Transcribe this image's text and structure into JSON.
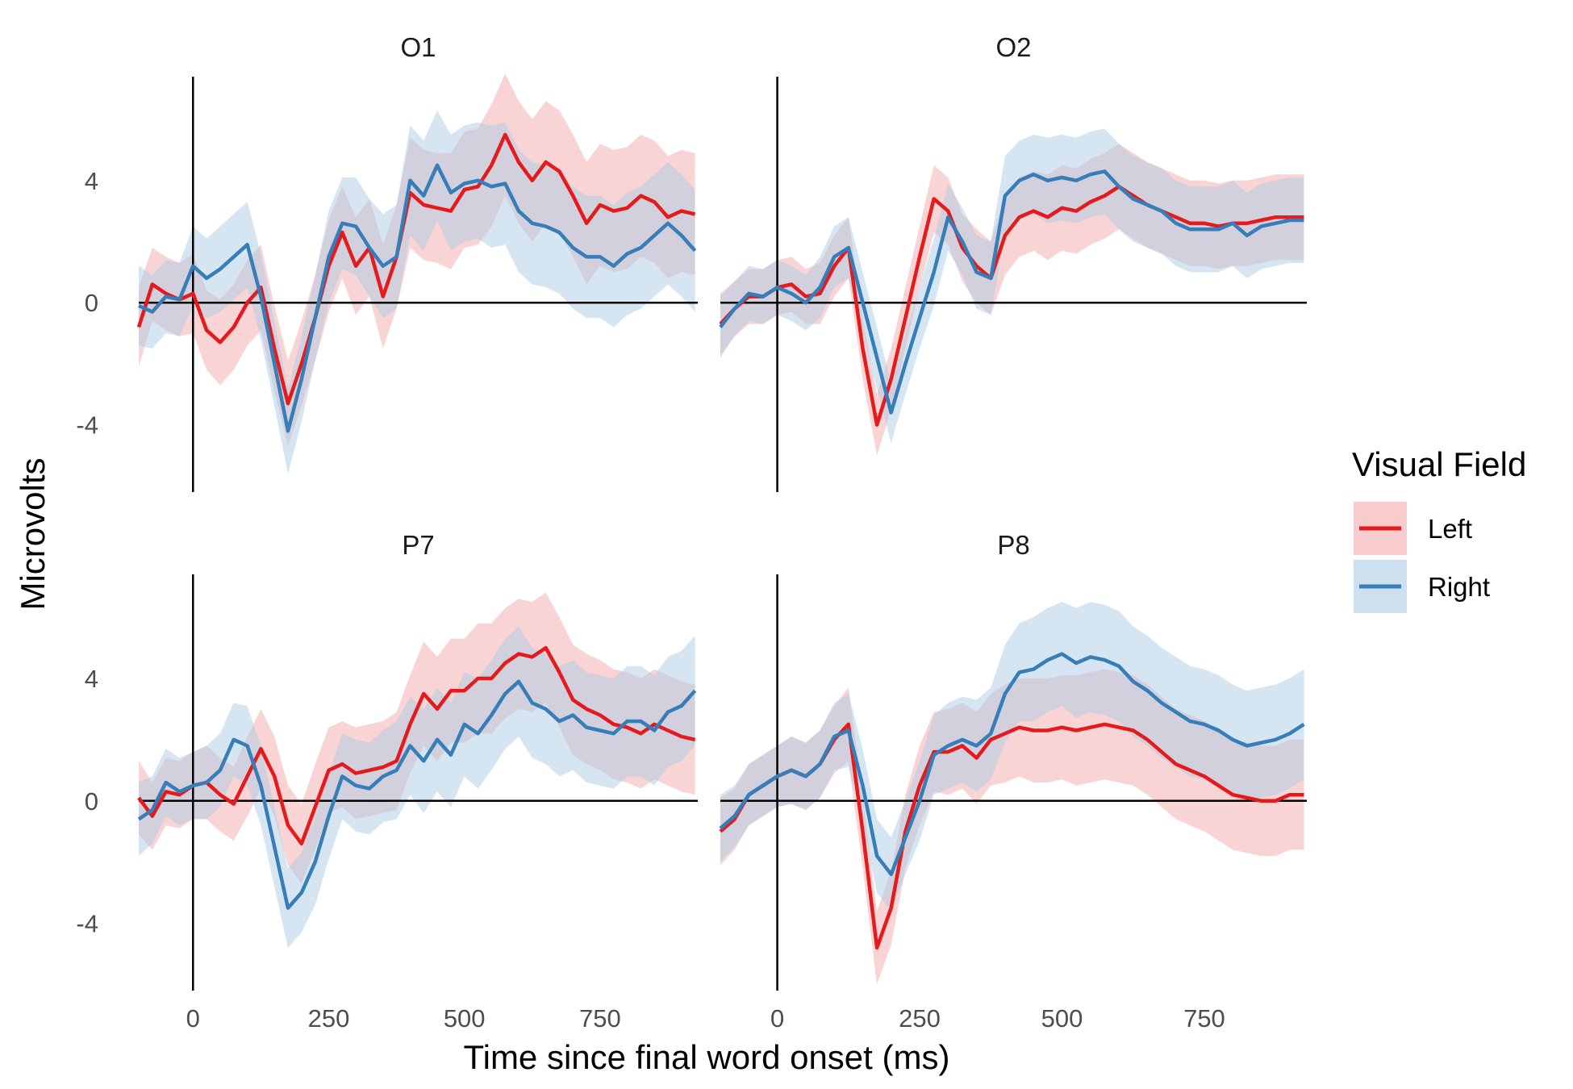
{
  "chart_data": {
    "type": "line",
    "xlabel": "Time since final word onset (ms)",
    "ylabel": "Microvolts",
    "xlim": [
      -100,
      930
    ],
    "ylim": [
      -6.2,
      7.4
    ],
    "x_ticks": [
      0,
      250,
      500,
      750
    ],
    "y_ticks": [
      -4,
      0,
      4
    ],
    "grid": false,
    "legend": {
      "title": "Visual Field",
      "position": "right",
      "entries": [
        {
          "label": "Left",
          "color": "#e41a1c"
        },
        {
          "label": "Right",
          "color": "#377eb8"
        }
      ]
    },
    "colors": {
      "Left": "#e41a1c",
      "Right": "#377eb8",
      "Left_band": "#f4a9aa",
      "Right_band": "#aecbe6"
    },
    "panels": [
      {
        "title": "O1",
        "x": [
          -100,
          -75,
          -50,
          -25,
          0,
          25,
          50,
          75,
          100,
          125,
          150,
          175,
          200,
          225,
          250,
          275,
          300,
          325,
          350,
          375,
          400,
          425,
          450,
          475,
          500,
          525,
          550,
          575,
          600,
          625,
          650,
          675,
          700,
          725,
          750,
          775,
          800,
          825,
          850,
          875,
          900,
          925
        ],
        "series": [
          {
            "name": "Left",
            "values": [
              -0.8,
              0.6,
              0.3,
              0.1,
              0.3,
              -0.9,
              -1.3,
              -0.8,
              0.0,
              0.5,
              -1.5,
              -3.3,
              -2.0,
              -0.5,
              1.2,
              2.3,
              1.2,
              1.8,
              0.2,
              1.5,
              3.6,
              3.2,
              3.1,
              3.0,
              3.7,
              3.8,
              4.5,
              5.5,
              4.6,
              4.0,
              4.6,
              4.3,
              3.5,
              2.6,
              3.2,
              3.0,
              3.1,
              3.5,
              3.3,
              2.8,
              3.0,
              2.9
            ],
            "band": [
              1.3,
              1.2,
              1.2,
              1.2,
              1.3,
              1.3,
              1.4,
              1.4,
              1.4,
              1.4,
              1.4,
              1.4,
              1.4,
              1.4,
              1.5,
              1.5,
              1.6,
              1.6,
              1.7,
              1.7,
              1.8,
              1.8,
              1.8,
              1.9,
              1.9,
              1.9,
              2.0,
              2.0,
              2.0,
              2.0,
              2.0,
              2.0,
              2.0,
              2.0,
              2.0,
              2.0,
              2.0,
              2.0,
              2.0,
              2.0,
              2.0,
              2.0
            ]
          },
          {
            "name": "Right",
            "values": [
              -0.1,
              -0.3,
              0.2,
              0.1,
              1.2,
              0.8,
              1.1,
              1.5,
              1.9,
              0.2,
              -2.0,
              -4.2,
              -2.5,
              -0.5,
              1.5,
              2.6,
              2.5,
              1.8,
              1.2,
              1.5,
              4.0,
              3.5,
              4.5,
              3.6,
              3.9,
              4.0,
              3.8,
              3.9,
              3.0,
              2.6,
              2.5,
              2.3,
              1.8,
              1.5,
              1.5,
              1.2,
              1.6,
              1.8,
              2.2,
              2.6,
              2.2,
              1.7
            ],
            "band": [
              1.3,
              1.2,
              1.2,
              1.2,
              1.3,
              1.3,
              1.4,
              1.4,
              1.4,
              1.4,
              1.4,
              1.4,
              1.4,
              1.4,
              1.5,
              1.5,
              1.6,
              1.6,
              1.7,
              1.7,
              1.8,
              1.8,
              1.8,
              1.9,
              1.9,
              1.9,
              2.0,
              2.0,
              2.0,
              2.0,
              2.0,
              2.0,
              2.0,
              2.0,
              2.0,
              2.0,
              2.0,
              2.0,
              2.0,
              2.0,
              2.0,
              2.0
            ]
          }
        ]
      },
      {
        "title": "O2",
        "x": [
          -100,
          -75,
          -50,
          -25,
          0,
          25,
          50,
          75,
          100,
          125,
          150,
          175,
          200,
          225,
          250,
          275,
          300,
          325,
          350,
          375,
          400,
          425,
          450,
          475,
          500,
          525,
          550,
          575,
          600,
          625,
          650,
          675,
          700,
          725,
          750,
          775,
          800,
          825,
          850,
          875,
          900,
          925
        ],
        "series": [
          {
            "name": "Left",
            "values": [
              -0.7,
              -0.2,
              0.2,
              0.2,
              0.5,
              0.6,
              0.2,
              0.3,
              1.2,
              1.8,
              -1.5,
              -4.0,
              -2.5,
              -0.5,
              1.5,
              3.4,
              3.0,
              1.8,
              1.2,
              0.8,
              2.2,
              2.8,
              3.0,
              2.8,
              3.1,
              3.0,
              3.3,
              3.5,
              3.8,
              3.5,
              3.2,
              3.0,
              2.8,
              2.6,
              2.6,
              2.5,
              2.6,
              2.6,
              2.7,
              2.8,
              2.8,
              2.8
            ],
            "band": [
              1.0,
              0.9,
              0.9,
              0.9,
              0.9,
              0.9,
              0.9,
              1.0,
              1.0,
              1.0,
              1.0,
              1.0,
              1.0,
              1.0,
              1.0,
              1.1,
              1.1,
              1.1,
              1.2,
              1.2,
              1.3,
              1.3,
              1.3,
              1.4,
              1.4,
              1.4,
              1.4,
              1.4,
              1.4,
              1.4,
              1.4,
              1.4,
              1.4,
              1.4,
              1.4,
              1.4,
              1.4,
              1.4,
              1.4,
              1.4,
              1.4,
              1.4
            ]
          },
          {
            "name": "Right",
            "values": [
              -0.8,
              -0.2,
              0.3,
              0.2,
              0.5,
              0.3,
              0.0,
              0.5,
              1.5,
              1.8,
              0.0,
              -1.8,
              -3.6,
              -2.0,
              -0.5,
              1.0,
              2.8,
              2.0,
              1.0,
              0.8,
              3.5,
              4.0,
              4.2,
              4.0,
              4.1,
              4.0,
              4.2,
              4.3,
              3.8,
              3.4,
              3.2,
              3.0,
              2.6,
              2.4,
              2.4,
              2.4,
              2.6,
              2.2,
              2.5,
              2.6,
              2.7,
              2.7
            ],
            "band": [
              1.0,
              0.9,
              0.9,
              0.9,
              0.9,
              0.9,
              0.9,
              1.0,
              1.0,
              1.0,
              1.0,
              1.0,
              1.0,
              1.0,
              1.0,
              1.1,
              1.1,
              1.1,
              1.2,
              1.2,
              1.3,
              1.3,
              1.3,
              1.4,
              1.4,
              1.4,
              1.4,
              1.4,
              1.4,
              1.4,
              1.4,
              1.4,
              1.4,
              1.4,
              1.4,
              1.4,
              1.4,
              1.4,
              1.4,
              1.4,
              1.4,
              1.4
            ]
          }
        ]
      },
      {
        "title": "P7",
        "x": [
          -100,
          -75,
          -50,
          -25,
          0,
          25,
          50,
          75,
          100,
          125,
          150,
          175,
          200,
          225,
          250,
          275,
          300,
          325,
          350,
          375,
          400,
          425,
          450,
          475,
          500,
          525,
          550,
          575,
          600,
          625,
          650,
          675,
          700,
          725,
          750,
          775,
          800,
          825,
          850,
          875,
          900,
          925
        ],
        "series": [
          {
            "name": "Left",
            "values": [
              0.1,
              -0.5,
              0.3,
              0.2,
              0.5,
              0.6,
              0.2,
              -0.1,
              0.8,
              1.7,
              0.8,
              -0.8,
              -1.4,
              -0.2,
              1.0,
              1.2,
              0.9,
              1.0,
              1.1,
              1.3,
              2.5,
              3.5,
              3.0,
              3.6,
              3.6,
              4.0,
              4.0,
              4.5,
              4.8,
              4.7,
              5.0,
              4.2,
              3.3,
              3.0,
              2.8,
              2.5,
              2.4,
              2.2,
              2.5,
              2.3,
              2.1,
              2.0
            ],
            "band": [
              1.2,
              1.1,
              1.1,
              1.1,
              1.1,
              1.2,
              1.2,
              1.2,
              1.3,
              1.3,
              1.3,
              1.3,
              1.3,
              1.4,
              1.4,
              1.4,
              1.5,
              1.5,
              1.5,
              1.6,
              1.6,
              1.7,
              1.7,
              1.7,
              1.7,
              1.8,
              1.8,
              1.8,
              1.8,
              1.8,
              1.8,
              1.8,
              1.8,
              1.8,
              1.8,
              1.8,
              1.8,
              1.8,
              1.8,
              1.8,
              1.8,
              1.8
            ]
          },
          {
            "name": "Right",
            "values": [
              -0.6,
              -0.3,
              0.6,
              0.3,
              0.5,
              0.6,
              1.0,
              2.0,
              1.8,
              0.5,
              -1.5,
              -3.5,
              -3.0,
              -2.0,
              -0.5,
              0.8,
              0.5,
              0.4,
              0.8,
              1.0,
              1.8,
              1.3,
              2.0,
              1.5,
              2.5,
              2.2,
              2.8,
              3.5,
              3.9,
              3.2,
              3.0,
              2.6,
              2.8,
              2.4,
              2.3,
              2.2,
              2.6,
              2.6,
              2.3,
              2.9,
              3.1,
              3.6
            ],
            "band": [
              1.2,
              1.1,
              1.1,
              1.1,
              1.1,
              1.2,
              1.2,
              1.2,
              1.3,
              1.3,
              1.3,
              1.3,
              1.3,
              1.4,
              1.4,
              1.4,
              1.5,
              1.5,
              1.5,
              1.6,
              1.6,
              1.7,
              1.7,
              1.7,
              1.7,
              1.8,
              1.8,
              1.8,
              1.8,
              1.8,
              1.8,
              1.8,
              1.8,
              1.8,
              1.8,
              1.8,
              1.8,
              1.8,
              1.8,
              1.8,
              1.8,
              1.8
            ]
          }
        ]
      },
      {
        "title": "P8",
        "x": [
          -100,
          -75,
          -50,
          -25,
          0,
          25,
          50,
          75,
          100,
          125,
          150,
          175,
          200,
          225,
          250,
          275,
          300,
          325,
          350,
          375,
          400,
          425,
          450,
          475,
          500,
          525,
          550,
          575,
          600,
          625,
          650,
          675,
          700,
          725,
          750,
          775,
          800,
          825,
          850,
          875,
          900,
          925
        ],
        "series": [
          {
            "name": "Left",
            "values": [
              -1.0,
              -0.6,
              0.2,
              0.5,
              0.8,
              1.0,
              0.8,
              1.2,
              2.0,
              2.5,
              -1.0,
              -4.8,
              -3.5,
              -1.0,
              0.5,
              1.6,
              1.6,
              1.8,
              1.4,
              2.0,
              2.2,
              2.4,
              2.3,
              2.3,
              2.4,
              2.3,
              2.4,
              2.5,
              2.4,
              2.3,
              2.0,
              1.6,
              1.2,
              1.0,
              0.8,
              0.5,
              0.2,
              0.1,
              0.0,
              0.0,
              0.2,
              0.2
            ],
            "band": [
              1.1,
              1.0,
              1.0,
              1.0,
              1.0,
              1.1,
              1.1,
              1.1,
              1.1,
              1.2,
              1.2,
              1.2,
              1.2,
              1.2,
              1.3,
              1.3,
              1.4,
              1.4,
              1.5,
              1.5,
              1.6,
              1.6,
              1.7,
              1.7,
              1.7,
              1.8,
              1.8,
              1.8,
              1.8,
              1.8,
              1.8,
              1.8,
              1.8,
              1.8,
              1.8,
              1.8,
              1.8,
              1.8,
              1.8,
              1.8,
              1.8,
              1.8
            ]
          },
          {
            "name": "Right",
            "values": [
              -0.9,
              -0.5,
              0.2,
              0.5,
              0.8,
              1.0,
              0.8,
              1.2,
              2.1,
              2.3,
              0.5,
              -1.8,
              -2.4,
              -1.2,
              0.0,
              1.5,
              1.8,
              2.0,
              1.8,
              2.2,
              3.5,
              4.2,
              4.3,
              4.6,
              4.8,
              4.5,
              4.7,
              4.6,
              4.4,
              3.9,
              3.6,
              3.2,
              2.9,
              2.6,
              2.5,
              2.3,
              2.0,
              1.8,
              1.9,
              2.0,
              2.2,
              2.5
            ],
            "band": [
              1.1,
              1.0,
              1.0,
              1.0,
              1.0,
              1.1,
              1.1,
              1.1,
              1.1,
              1.2,
              1.2,
              1.2,
              1.2,
              1.2,
              1.3,
              1.3,
              1.4,
              1.4,
              1.5,
              1.5,
              1.6,
              1.6,
              1.7,
              1.7,
              1.7,
              1.8,
              1.8,
              1.8,
              1.8,
              1.8,
              1.8,
              1.8,
              1.8,
              1.8,
              1.8,
              1.8,
              1.8,
              1.8,
              1.8,
              1.8,
              1.8,
              1.8
            ]
          }
        ]
      }
    ]
  }
}
